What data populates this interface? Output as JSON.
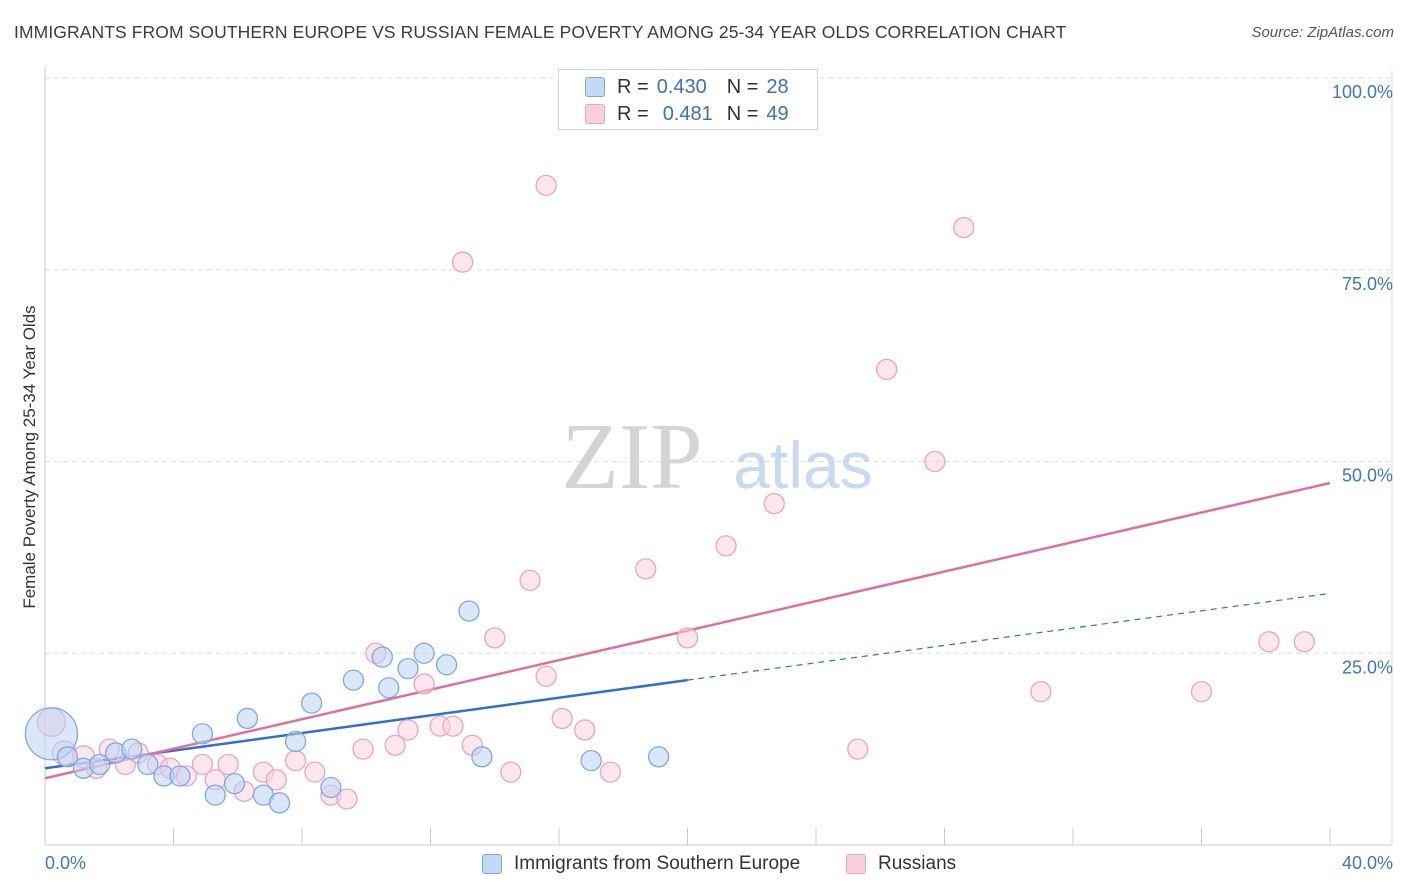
{
  "header": {
    "title": "IMMIGRANTS FROM SOUTHERN EUROPE VS RUSSIAN FEMALE POVERTY AMONG 25-34 YEAR OLDS CORRELATION CHART",
    "source": "Source: ZipAtlas.com"
  },
  "watermark": {
    "zip": "ZIP",
    "atlas": "atlas"
  },
  "legend": {
    "r_label": "R =",
    "n_label": "N =",
    "series": [
      {
        "r": "0.430",
        "n": "28",
        "color": "#9fbfee"
      },
      {
        "r": "0.481",
        "n": "49",
        "color": "#f3a8c0"
      }
    ]
  },
  "bottom_legend": {
    "items": [
      {
        "label": "Immigrants from Southern Europe",
        "color": "#9fbfee"
      },
      {
        "label": "Russians",
        "color": "#f3a8c0"
      }
    ]
  },
  "chart_data": {
    "type": "scatter",
    "title": "IMMIGRANTS FROM SOUTHERN EUROPE VS RUSSIAN FEMALE POVERTY AMONG 25-34 YEAR OLDS CORRELATION CHART",
    "xlabel": "",
    "ylabel": "Female Poverty Among 25-34 Year Olds",
    "xlim": [
      0,
      40
    ],
    "ylim": [
      0,
      100
    ],
    "x_tick_labels": [
      "0.0%",
      "40.0%"
    ],
    "y_ticks": [
      25,
      50,
      75,
      100
    ],
    "y_tick_labels": [
      "25.0%",
      "50.0%",
      "75.0%",
      "100.0%"
    ],
    "grid": true,
    "colors": {
      "blue_stroke": "#7da8e6",
      "blue_fill": "#bcd3f4",
      "blue_line": "#2e6fd2",
      "pink_stroke": "#eea2bb",
      "pink_fill": "#f9d3e0",
      "pink_line": "#e0709a",
      "axis_label": "#3f74c8"
    },
    "series": [
      {
        "name": "Immigrants from Southern Europe",
        "r": 0.43,
        "n": 28,
        "x": [
          0.2,
          0.7,
          1.2,
          1.7,
          2.2,
          2.7,
          3.2,
          3.7,
          4.2,
          4.9,
          5.3,
          5.9,
          6.3,
          6.8,
          7.3,
          7.8,
          8.3,
          8.9,
          9.6,
          10.5,
          10.7,
          11.3,
          11.8,
          12.5,
          13.2,
          13.6,
          17.0,
          19.1
        ],
        "y": [
          14.5,
          11.5,
          10.0,
          10.5,
          12.0,
          12.5,
          10.5,
          9.0,
          9.0,
          14.5,
          6.5,
          8.0,
          16.5,
          6.5,
          5.5,
          13.5,
          18.5,
          7.5,
          21.5,
          24.5,
          20.5,
          23.0,
          25.0,
          23.5,
          30.5,
          11.5,
          11.0,
          11.5
        ],
        "sizes": [
          26,
          10,
          10,
          10,
          10,
          10,
          10,
          10,
          10,
          10,
          10,
          10,
          10,
          10,
          10,
          10,
          10,
          10,
          10,
          10,
          10,
          10,
          10,
          10,
          10,
          10,
          10,
          10
        ],
        "trend": {
          "x0": 0,
          "y0": 10.0,
          "x1": 20.0,
          "y1": 21.5,
          "dash_x1": 40.0,
          "dash_y1": 32.8
        }
      },
      {
        "name": "Russians",
        "r": 0.481,
        "n": 49,
        "x": [
          0.2,
          0.6,
          1.2,
          1.6,
          2.0,
          2.5,
          2.9,
          3.5,
          3.9,
          4.4,
          4.9,
          5.3,
          5.7,
          6.2,
          6.8,
          7.2,
          7.8,
          8.4,
          8.9,
          9.4,
          9.9,
          10.3,
          10.9,
          11.3,
          11.8,
          12.3,
          12.7,
          13.3,
          14.0,
          14.5,
          15.1,
          15.6,
          16.1,
          16.8,
          17.6,
          18.7,
          20.0,
          21.2,
          22.7,
          25.3,
          26.2,
          27.7,
          28.6,
          31.0,
          36.0,
          38.1,
          39.2,
          13.0,
          15.6
        ],
        "y": [
          16.0,
          12.0,
          11.5,
          10.0,
          12.5,
          10.5,
          12.0,
          10.5,
          10.0,
          9.0,
          10.5,
          8.5,
          10.5,
          7.0,
          9.5,
          8.5,
          11.0,
          9.5,
          6.5,
          6.0,
          12.5,
          25.0,
          13.0,
          15.0,
          21.0,
          15.5,
          15.5,
          13.0,
          27.0,
          9.5,
          34.5,
          22.0,
          16.5,
          15.0,
          9.5,
          36.0,
          27.0,
          39.0,
          44.5,
          12.5,
          62.0,
          50.0,
          80.5,
          20.0,
          20.0,
          26.5,
          26.5,
          76.0,
          86.0
        ],
        "sizes": [
          14,
          12,
          11,
          10,
          10,
          10,
          10,
          10,
          10,
          10,
          10,
          10,
          10,
          10,
          10,
          10,
          10,
          10,
          10,
          10,
          10,
          10,
          10,
          10,
          10,
          10,
          10,
          10,
          10,
          10,
          10,
          10,
          10,
          10,
          10,
          10,
          10,
          10,
          10,
          10,
          10,
          10,
          10,
          10,
          10,
          10,
          10,
          10,
          10
        ],
        "trend": {
          "x0": 0,
          "y0": 8.7,
          "x1": 40.0,
          "y1": 47.2
        }
      }
    ]
  }
}
